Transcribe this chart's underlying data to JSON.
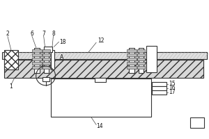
{
  "fig_width": 3.0,
  "fig_height": 2.0,
  "dpi": 100,
  "bg_color": "white",
  "line_color": "#333333",
  "label_fontsize": 5.5,
  "label_color": "#111111"
}
